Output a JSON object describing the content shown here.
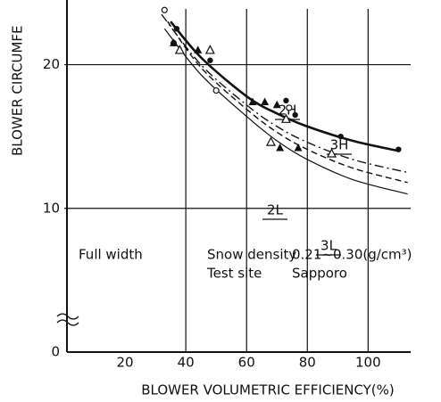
{
  "chart_data": {
    "type": "scatter",
    "y_label": "BLOWER CIRCUMFE",
    "x_label": "BLOWER VOLUMETRIC EFFICIENCY(%)",
    "xlim": [
      0,
      114
    ],
    "xticks": [
      20,
      40,
      60,
      80,
      100
    ],
    "ylim": [
      0,
      24.5
    ],
    "yticks": [
      0,
      10,
      20
    ],
    "grid": true,
    "series": [
      {
        "marker": "filled-circle",
        "color": "#111",
        "x": [
          37,
          48,
          73,
          76,
          91,
          110
        ],
        "values": [
          22.5,
          20.3,
          17.5,
          16.5,
          15,
          14.1
        ]
      },
      {
        "marker": "open-circle",
        "color": "#111",
        "x": [
          33,
          36,
          50,
          74
        ],
        "values": [
          23.8,
          21.5,
          18.2,
          17
        ]
      },
      {
        "marker": "filled-triangle",
        "color": "#111",
        "x": [
          36,
          38,
          44,
          62,
          66,
          70,
          71,
          77
        ],
        "values": [
          21.5,
          21,
          21,
          17.4,
          17.4,
          17.2,
          14.2,
          14.2
        ]
      },
      {
        "marker": "open-triangle",
        "color": "#111",
        "x": [
          38,
          48,
          68,
          73,
          88
        ],
        "values": [
          21,
          21,
          14.6,
          16.2,
          13.8
        ]
      }
    ],
    "curves": [
      {
        "name": "3H",
        "style": "solid-thick",
        "x": [
          35,
          45,
          60,
          70,
          80,
          95,
          110
        ],
        "values": [
          23,
          20.5,
          17.8,
          16.6,
          15.7,
          14.7,
          14
        ]
      },
      {
        "name": "2H",
        "style": "dash-dot",
        "x": [
          32,
          45,
          60,
          70,
          80,
          95,
          113
        ],
        "values": [
          23.5,
          20,
          17.2,
          15.7,
          14.6,
          13.4,
          12.5
        ]
      },
      {
        "name": "3L",
        "style": "dashed",
        "x": [
          34,
          45,
          60,
          70,
          80,
          95,
          113
        ],
        "values": [
          23,
          19.8,
          16.9,
          15.3,
          14.1,
          12.8,
          11.8
        ]
      },
      {
        "name": "2L",
        "style": "solid",
        "x": [
          33,
          45,
          60,
          70,
          80,
          95,
          113
        ],
        "values": [
          22.5,
          19.3,
          16.4,
          14.7,
          13.4,
          12,
          11
        ]
      }
    ],
    "annotations": [
      "Full width",
      "Snow density",
      "0.21~0.30(g/cm³)",
      "Test site",
      "Sapporo"
    ]
  }
}
